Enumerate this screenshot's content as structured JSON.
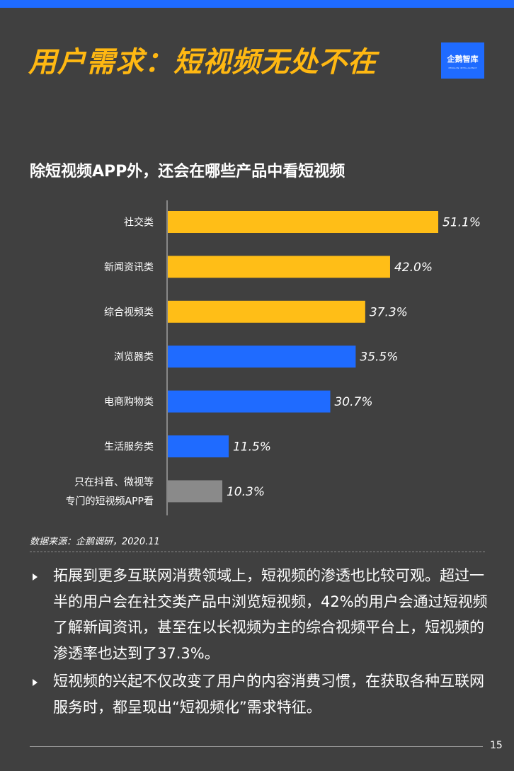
{
  "page": {
    "title": "用户需求：短视频无处不在",
    "logo_text": "企鹅智库",
    "logo_subtitle": "PENGUIN INTELLIGENCE",
    "source": "数据来源：企鹅调研，2020.11",
    "page_number": "15"
  },
  "colors": {
    "background": "#404040",
    "accent_blue": "#1f6bff",
    "title_yellow": "#ffb812",
    "bar_yellow": "#ffbe17",
    "bar_blue": "#1f6bff",
    "bar_gray": "#8a8a8a"
  },
  "chart_data": {
    "type": "bar",
    "orientation": "horizontal",
    "title": "除短视频APP外，还会在哪些产品中看短视频",
    "categories": [
      "社交类",
      "新闻资讯类",
      "综合视频类",
      "浏览器类",
      "电商购物类",
      "生活服务类",
      "只在抖音、微视等\n专门的短视频APP看"
    ],
    "values": [
      51.1,
      42.0,
      37.3,
      35.5,
      30.7,
      11.5,
      10.3
    ],
    "value_labels": [
      "51.1%",
      "42.0%",
      "37.3%",
      "35.5%",
      "30.7%",
      "11.5%",
      "10.3%"
    ],
    "bar_colors": [
      "yellow",
      "yellow",
      "yellow",
      "blue",
      "blue",
      "blue",
      "gray"
    ],
    "xlim": [
      0,
      51.1
    ],
    "grid": false,
    "legend": "none"
  },
  "bullets": [
    {
      "text": "拓展到更多互联网消费领域上，短视频的渗透也比较可观。超过一半的用户会在社交类产品中浏览短视频，42%的用户会通过短视频了解新闻资讯，甚至在以长视频为主的综合视频平台上，短视频的渗透率也达到了37.3%。"
    },
    {
      "text": "短视频的兴起不仅改变了用户的内容消费习惯，在获取各种互联网服务时，都呈现出“短视频化”需求特征。"
    }
  ]
}
